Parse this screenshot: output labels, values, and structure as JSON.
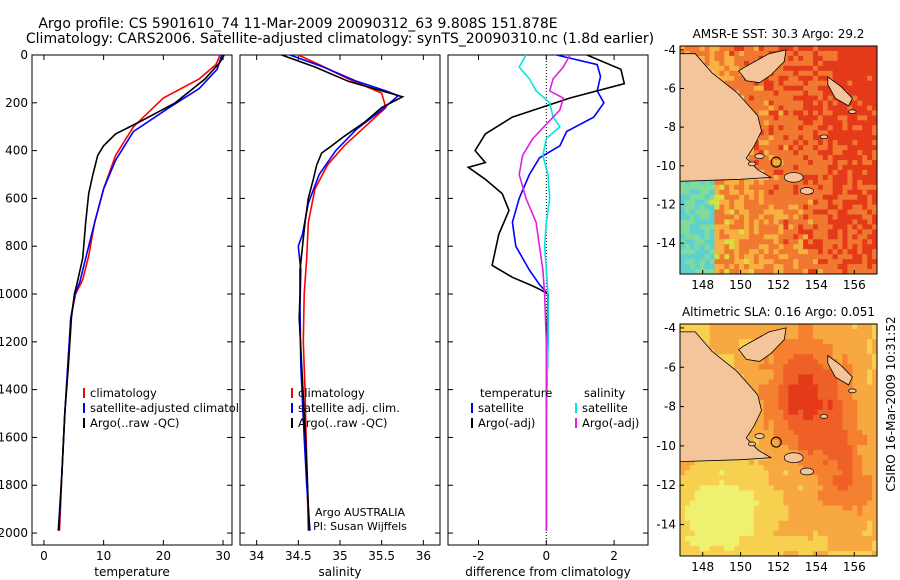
{
  "title": {
    "line1": "Argo profile: CS 5901610_74 11-Mar-2009 20090312_63 9.808S 151.878E",
    "line2": "Climatology: CARS2006. Satellite-adjusted climatology: synTS_20090310.nc (1.8d earlier)"
  },
  "colors": {
    "clim": "#ff0000",
    "sat": "#0000ff",
    "argo": "#000000",
    "sat_salt": "#00e5e5",
    "argo_salt": "#e020e0"
  },
  "chart_data": [
    {
      "type": "line",
      "id": "temperature",
      "xlabel": "temperature",
      "xlim": [
        -2,
        31.5
      ],
      "ylim": [
        2050,
        0
      ],
      "y_reversed": true,
      "xticks": [
        0,
        10,
        20,
        30
      ],
      "yticks": [
        0,
        200,
        400,
        600,
        800,
        1000,
        1200,
        1400,
        1600,
        1800,
        2000
      ],
      "legend": [
        "climatology",
        "satellite-adjusted climatology",
        "Argo(..raw -QC)"
      ],
      "legend_loc": "lower-center",
      "series": [
        {
          "name": "climatology",
          "color": "#ff0000",
          "points": [
            [
              29.5,
              0
            ],
            [
              28.8,
              40
            ],
            [
              26,
              100
            ],
            [
              20,
              180
            ],
            [
              15,
              300
            ],
            [
              12,
              420
            ],
            [
              10,
              560
            ],
            [
              8.5,
              700
            ],
            [
              7.5,
              840
            ],
            [
              6.5,
              940
            ],
            [
              5.3,
              1000
            ],
            [
              4.5,
              1100
            ],
            [
              4,
              1300
            ],
            [
              3.5,
              1500
            ],
            [
              3.0,
              1750
            ],
            [
              2.6,
              1990
            ]
          ]
        },
        {
          "name": "satellite-adjusted climatology",
          "color": "#0000ff",
          "points": [
            [
              29.8,
              0
            ],
            [
              29,
              60
            ],
            [
              26,
              140
            ],
            [
              21,
              220
            ],
            [
              15,
              320
            ],
            [
              12,
              440
            ],
            [
              10,
              560
            ],
            [
              8.5,
              700
            ],
            [
              7,
              850
            ],
            [
              6,
              950
            ],
            [
              5.2,
              1000
            ],
            [
              4.5,
              1100
            ],
            [
              4,
              1300
            ],
            [
              3.5,
              1500
            ],
            [
              3,
              1750
            ],
            [
              2.5,
              1990
            ]
          ]
        },
        {
          "name": "Argo(..raw -QC)",
          "color": "#000000",
          "points": [
            [
              30.2,
              0
            ],
            [
              29.5,
              30
            ],
            [
              27,
              100
            ],
            [
              22,
              200
            ],
            [
              16,
              280
            ],
            [
              12,
              330
            ],
            [
              10,
              380
            ],
            [
              9,
              420
            ],
            [
              8.2,
              500
            ],
            [
              7.5,
              580
            ],
            [
              7,
              700
            ],
            [
              6.5,
              850
            ],
            [
              5.5,
              960
            ],
            [
              5.1,
              1000
            ],
            [
              4.6,
              1100
            ],
            [
              4.1,
              1300
            ],
            [
              3.5,
              1500
            ],
            [
              3.0,
              1750
            ],
            [
              2.4,
              1990
            ]
          ]
        }
      ]
    },
    {
      "type": "line",
      "id": "salinity",
      "xlabel": "salinity",
      "xlim": [
        33.8,
        36.2
      ],
      "ylim": [
        2050,
        0
      ],
      "y_reversed": true,
      "xticks": [
        34,
        34.5,
        35,
        35.5,
        36
      ],
      "legend": [
        "climatology",
        "satellite adj. clim.",
        "Argo(..raw -QC)"
      ],
      "legend_loc": "lower-center",
      "annotation": [
        "Argo AUSTRALIA",
        "PI: Susan Wijffels"
      ],
      "series": [
        {
          "name": "climatology",
          "color": "#ff0000",
          "points": [
            [
              34.5,
              0
            ],
            [
              34.75,
              40
            ],
            [
              35.1,
              100
            ],
            [
              35.5,
              160
            ],
            [
              35.55,
              220
            ],
            [
              35.3,
              300
            ],
            [
              35.05,
              380
            ],
            [
              34.85,
              460
            ],
            [
              34.7,
              560
            ],
            [
              34.62,
              700
            ],
            [
              34.6,
              850
            ],
            [
              34.57,
              1000
            ],
            [
              34.56,
              1200
            ],
            [
              34.58,
              1400
            ],
            [
              34.6,
              1700
            ],
            [
              34.62,
              1990
            ]
          ]
        },
        {
          "name": "satellite adj. clim.",
          "color": "#0000ff",
          "points": [
            [
              34.4,
              0
            ],
            [
              34.8,
              50
            ],
            [
              35.2,
              110
            ],
            [
              35.55,
              150
            ],
            [
              35.7,
              170
            ],
            [
              35.5,
              230
            ],
            [
              35.2,
              310
            ],
            [
              34.95,
              400
            ],
            [
              34.75,
              500
            ],
            [
              34.62,
              620
            ],
            [
              34.55,
              750
            ],
            [
              34.5,
              800
            ],
            [
              34.53,
              900
            ],
            [
              34.52,
              1050
            ],
            [
              34.53,
              1300
            ],
            [
              34.57,
              1600
            ],
            [
              34.6,
              1800
            ],
            [
              34.64,
              1990
            ]
          ]
        },
        {
          "name": "Argo(..raw -QC)",
          "color": "#000000",
          "points": [
            [
              34.3,
              0
            ],
            [
              34.7,
              50
            ],
            [
              35.1,
              110
            ],
            [
              35.5,
              150
            ],
            [
              35.65,
              165
            ],
            [
              35.75,
              175
            ],
            [
              35.5,
              220
            ],
            [
              35.3,
              280
            ],
            [
              35.05,
              340
            ],
            [
              34.9,
              380
            ],
            [
              34.78,
              410
            ],
            [
              34.72,
              460
            ],
            [
              34.68,
              520
            ],
            [
              34.62,
              600
            ],
            [
              34.58,
              700
            ],
            [
              34.55,
              800
            ],
            [
              34.52,
              900
            ],
            [
              34.52,
              1000
            ],
            [
              34.51,
              1100
            ],
            [
              34.54,
              1300
            ],
            [
              34.57,
              1500
            ],
            [
              34.6,
              1700
            ],
            [
              34.63,
              1990
            ]
          ]
        }
      ]
    },
    {
      "type": "line",
      "id": "difference",
      "xlabel": "difference from climatology",
      "xlim": [
        -2.9,
        3.0
      ],
      "ylim": [
        2050,
        0
      ],
      "y_reversed": true,
      "xticks": [
        -2,
        0,
        2
      ],
      "legend_temperature_title": "temperature",
      "legend_salinity_title": "salinity",
      "legend_temperature": [
        "satellite",
        "Argo(-adj)"
      ],
      "legend_salinity": [
        "satellite",
        "Argo(-adj)"
      ],
      "series": [
        {
          "name": "temperature satellite",
          "color": "#0000ff",
          "points": [
            [
              0.3,
              0
            ],
            [
              1.5,
              40
            ],
            [
              1.6,
              90
            ],
            [
              1.5,
              150
            ],
            [
              1.7,
              200
            ],
            [
              1.4,
              260
            ],
            [
              0.6,
              320
            ],
            [
              0.4,
              380
            ],
            [
              -0.2,
              430
            ],
            [
              -0.5,
              500
            ],
            [
              -0.8,
              600
            ],
            [
              -1.0,
              700
            ],
            [
              -0.9,
              800
            ],
            [
              -0.5,
              900
            ],
            [
              -0.2,
              960
            ],
            [
              0.05,
              1000
            ],
            [
              0.05,
              1200
            ],
            [
              0.0,
              1500
            ],
            [
              0.0,
              1800
            ],
            [
              0.0,
              1990
            ]
          ]
        },
        {
          "name": "temperature Argo(-adj)",
          "color": "#000000",
          "points": [
            [
              1.2,
              0
            ],
            [
              2.2,
              60
            ],
            [
              2.3,
              120
            ],
            [
              0.7,
              180
            ],
            [
              -1.0,
              260
            ],
            [
              -1.8,
              330
            ],
            [
              -2.1,
              400
            ],
            [
              -1.8,
              450
            ],
            [
              -2.3,
              470
            ],
            [
              -1.8,
              520
            ],
            [
              -1.3,
              580
            ],
            [
              -1.1,
              650
            ],
            [
              -1.4,
              750
            ],
            [
              -1.6,
              880
            ],
            [
              -1.0,
              930
            ],
            [
              -0.5,
              960
            ],
            [
              -0.2,
              980
            ],
            [
              0.05,
              1000
            ],
            [
              0.0,
              1300
            ],
            [
              0.0,
              1600
            ],
            [
              0.0,
              1990
            ]
          ]
        },
        {
          "name": "salinity satellite",
          "color": "#00e5e5",
          "points": [
            [
              -0.6,
              0
            ],
            [
              -0.8,
              50
            ],
            [
              -0.5,
              100
            ],
            [
              -0.3,
              150
            ],
            [
              0.1,
              200
            ],
            [
              0.2,
              260
            ],
            [
              0.4,
              300
            ],
            [
              0.0,
              350
            ],
            [
              -0.1,
              420
            ],
            [
              0.05,
              500
            ],
            [
              0.1,
              600
            ],
            [
              0.0,
              700
            ],
            [
              -0.05,
              800
            ],
            [
              0.0,
              900
            ],
            [
              0.05,
              1000
            ],
            [
              0.05,
              1200
            ],
            [
              0.0,
              1500
            ],
            [
              0.0,
              1990
            ]
          ]
        },
        {
          "name": "salinity Argo(-adj)",
          "color": "#e020e0",
          "points": [
            [
              0.7,
              0
            ],
            [
              0.5,
              50
            ],
            [
              0.2,
              100
            ],
            [
              0.1,
              150
            ],
            [
              0.5,
              180
            ],
            [
              0.4,
              230
            ],
            [
              0.0,
              290
            ],
            [
              -0.4,
              350
            ],
            [
              -0.7,
              420
            ],
            [
              -0.8,
              500
            ],
            [
              -0.6,
              600
            ],
            [
              -0.3,
              700
            ],
            [
              -0.2,
              800
            ],
            [
              -0.1,
              900
            ],
            [
              -0.05,
              1000
            ],
            [
              0.0,
              1200
            ],
            [
              0.0,
              1990
            ]
          ]
        }
      ]
    },
    {
      "type": "heatmap",
      "id": "sst_map",
      "title": "AMSR-E SST: 30.3 Argo: 29.2",
      "xlim": [
        146.8,
        157.2
      ],
      "ylim": [
        -15.6,
        -3.8
      ],
      "xticks": [
        148,
        150,
        152,
        154,
        156
      ],
      "yticks": [
        -4,
        -6,
        -8,
        -10,
        -12,
        -14
      ],
      "marker": [
        151.878,
        -9.808
      ]
    },
    {
      "type": "heatmap",
      "id": "sla_map",
      "title": "Altimetric SLA: 0.16 Argo: 0.051",
      "xlim": [
        146.8,
        157.2
      ],
      "ylim": [
        -15.6,
        -3.8
      ],
      "xticks": [
        148,
        150,
        152,
        154,
        156
      ],
      "yticks": [
        -4,
        -6,
        -8,
        -10,
        -12,
        -14
      ],
      "marker": [
        151.878,
        -9.808
      ]
    }
  ],
  "footer_vertical": "CSIRO 16-Mar-2009 10:31:52"
}
